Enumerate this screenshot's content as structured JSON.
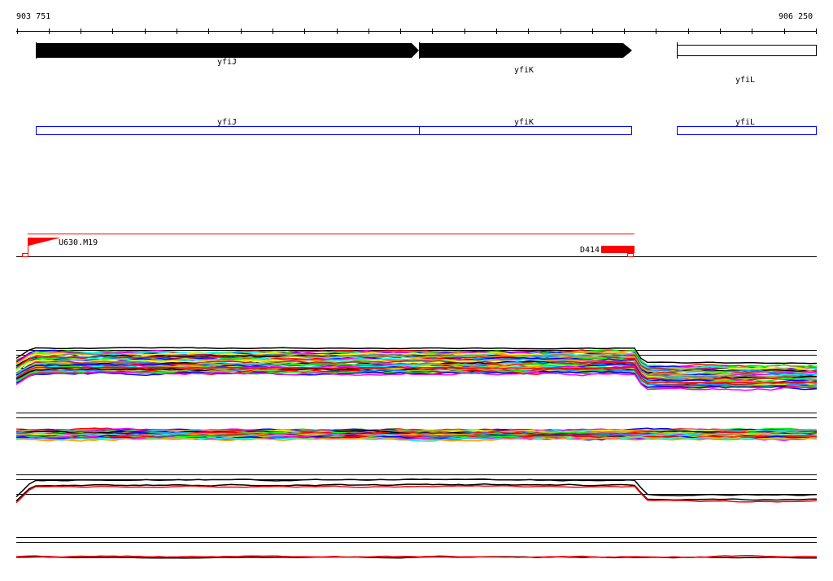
{
  "ruler": {
    "start_label": "903 751",
    "end_label": "906 250"
  },
  "genes": [
    {
      "name": "yfiJ",
      "strand": "+",
      "filled": true
    },
    {
      "name": "yfiK",
      "strand": "+",
      "filled": true
    },
    {
      "name": "yfiL",
      "strand": "+",
      "filled": false
    }
  ],
  "annotations": [
    {
      "name": "yfiJ"
    },
    {
      "name": "yfiK"
    },
    {
      "name": "yfiL"
    }
  ],
  "probes": {
    "left_label": "U630.M19",
    "right_label": "D414"
  },
  "colors": {
    "gene": "#000000",
    "annotation": "#0000ff",
    "probe": "#ff0000",
    "traces": [
      "#ff0000",
      "#00ff00",
      "#0000ff",
      "#ff00ff",
      "#00ffff",
      "#ffa500",
      "#ffff00",
      "#808080",
      "#a52a2a",
      "#000000",
      "#1e90ff",
      "#9acd32"
    ]
  }
}
